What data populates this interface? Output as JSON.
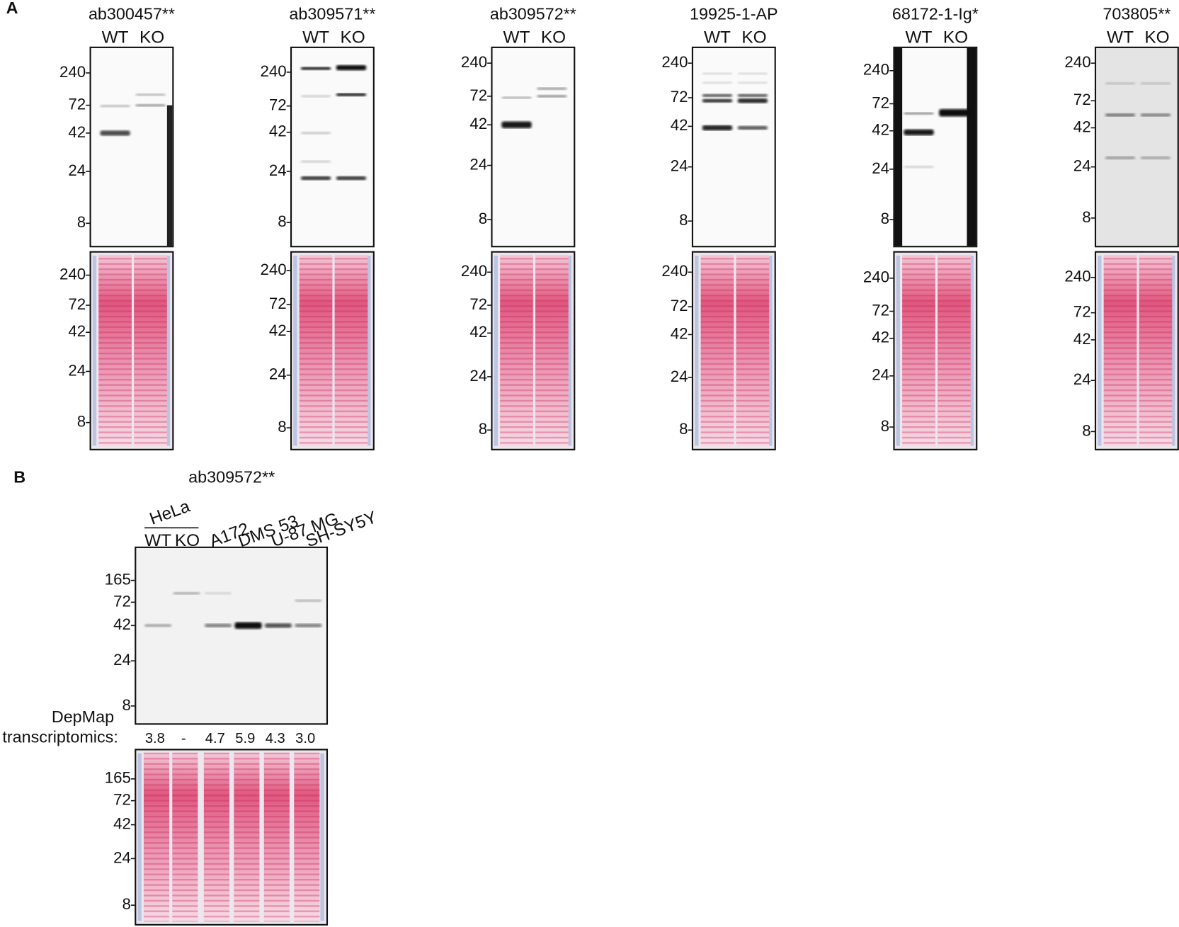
{
  "panel_a": {
    "label": "A",
    "blots": [
      {
        "antibody": "ab300457**",
        "lanes": [
          "WT",
          "KO"
        ],
        "western_markers": [
          "240",
          "72",
          "42",
          "24",
          "8"
        ],
        "ponceau_markers": [
          "240",
          "72",
          "42",
          "24",
          "8"
        ]
      },
      {
        "antibody": "ab309571**",
        "lanes": [
          "WT",
          "KO"
        ],
        "western_markers": [
          "240",
          "72",
          "42",
          "24",
          "8"
        ],
        "ponceau_markers": [
          "240",
          "72",
          "42",
          "24",
          "8"
        ]
      },
      {
        "antibody": "ab309572**",
        "lanes": [
          "WT",
          "KO"
        ],
        "western_markers": [
          "240",
          "72",
          "42",
          "24",
          "8"
        ],
        "ponceau_markers": [
          "240",
          "72",
          "42",
          "24",
          "8"
        ]
      },
      {
        "antibody": "19925-1-AP",
        "lanes": [
          "WT",
          "KO"
        ],
        "western_markers": [
          "240",
          "72",
          "42",
          "24",
          "8"
        ],
        "ponceau_markers": [
          "240",
          "72",
          "42",
          "24",
          "8"
        ]
      },
      {
        "antibody": "68172-1-Ig*",
        "lanes": [
          "WT",
          "KO"
        ],
        "western_markers": [
          "240",
          "72",
          "42",
          "24",
          "8"
        ],
        "ponceau_markers": [
          "240",
          "72",
          "42",
          "24",
          "8"
        ]
      },
      {
        "antibody": "703805**",
        "lanes": [
          "WT",
          "KO"
        ],
        "western_markers": [
          "240",
          "72",
          "42",
          "24",
          "8"
        ],
        "ponceau_markers": [
          "240",
          "72",
          "42",
          "24",
          "8"
        ]
      }
    ]
  },
  "panel_b": {
    "label": "B",
    "antibody": "ab309572**",
    "cell_line_group": "HeLa",
    "lanes": [
      "WT",
      "KO",
      "A172",
      "DMS 53",
      "U-87 MG",
      "SH-SY5Y"
    ],
    "western_markers": [
      "165",
      "72",
      "42",
      "24",
      "8"
    ],
    "depmap_label": [
      "DepMap",
      "transcriptomics:"
    ],
    "depmap_values": [
      "3.8",
      "-",
      "4.7",
      "5.9",
      "4.3",
      "3.0"
    ],
    "ponceau_markers": [
      "165",
      "72",
      "42",
      "24",
      "8"
    ]
  }
}
